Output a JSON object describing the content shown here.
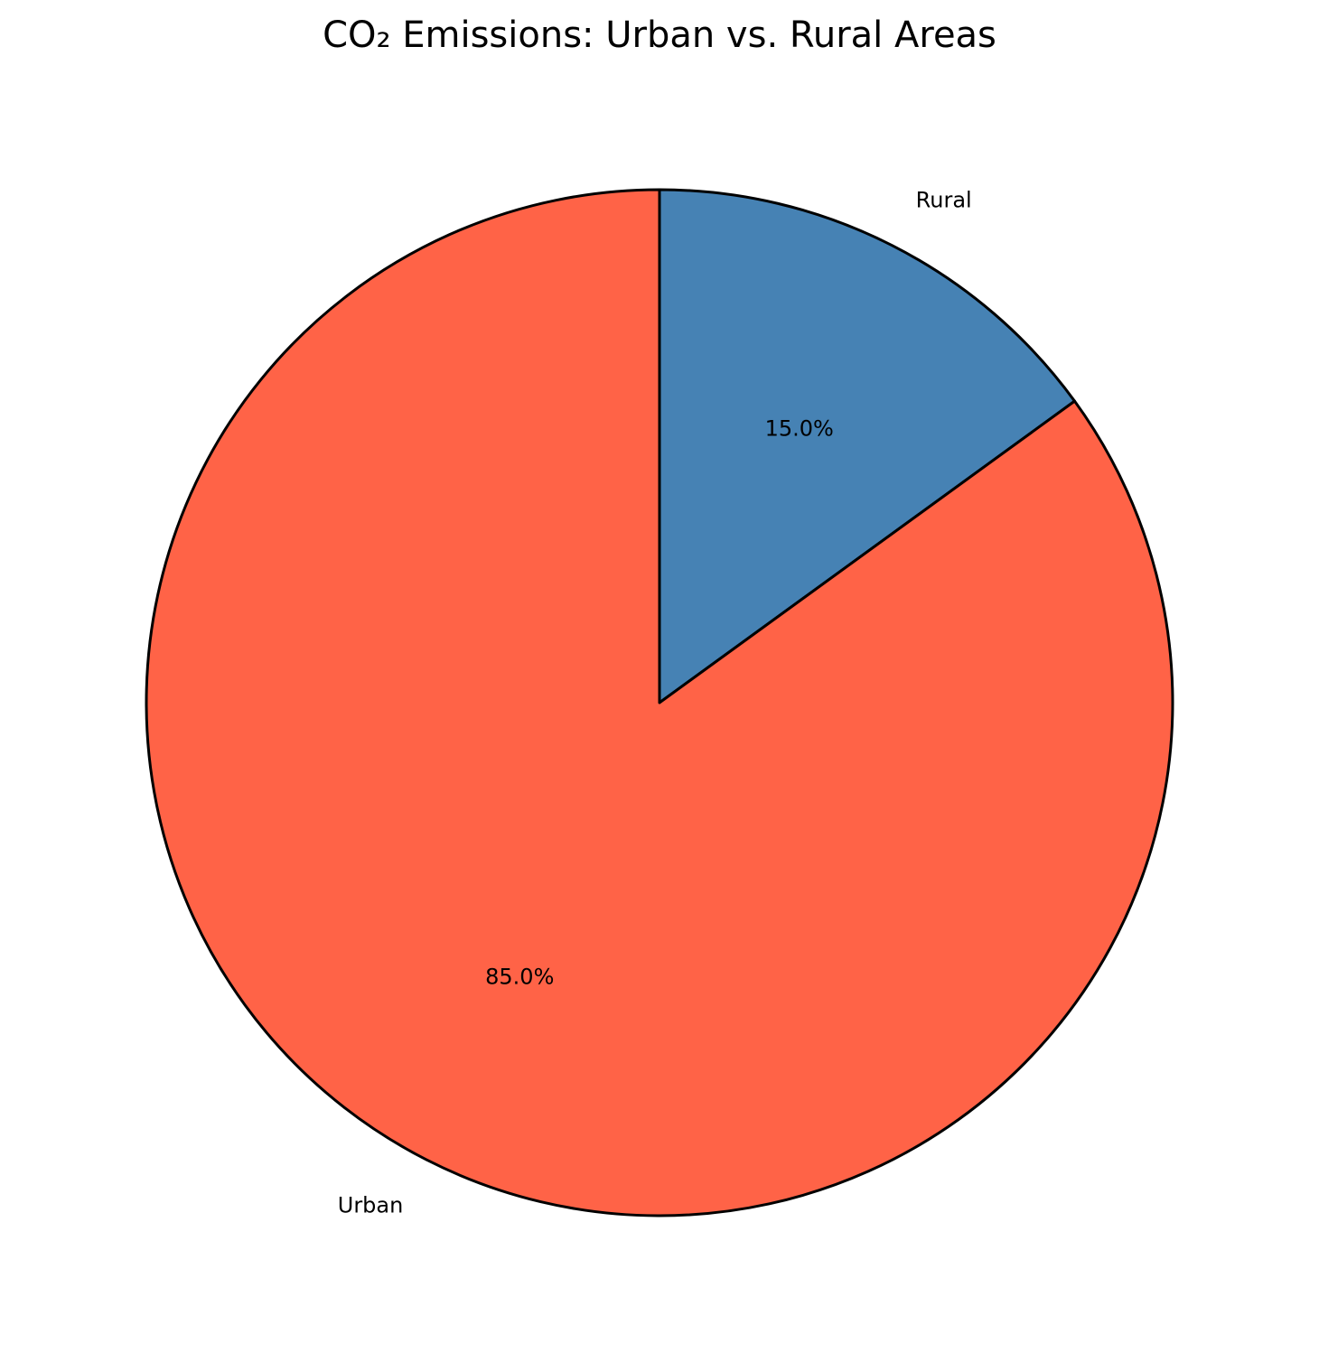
{
  "chart_data": {
    "type": "pie",
    "title": "CO₂ Emissions: Urban vs. Rural Areas",
    "categories": [
      "Rural",
      "Urban"
    ],
    "values": [
      15.0,
      85.0
    ],
    "percent_labels": [
      "15.0%",
      "85.0%"
    ],
    "colors": [
      "#4682B4",
      "#FF6347"
    ],
    "edge_color": "#000000",
    "start_angle_deg": 90,
    "direction": "clockwise"
  }
}
